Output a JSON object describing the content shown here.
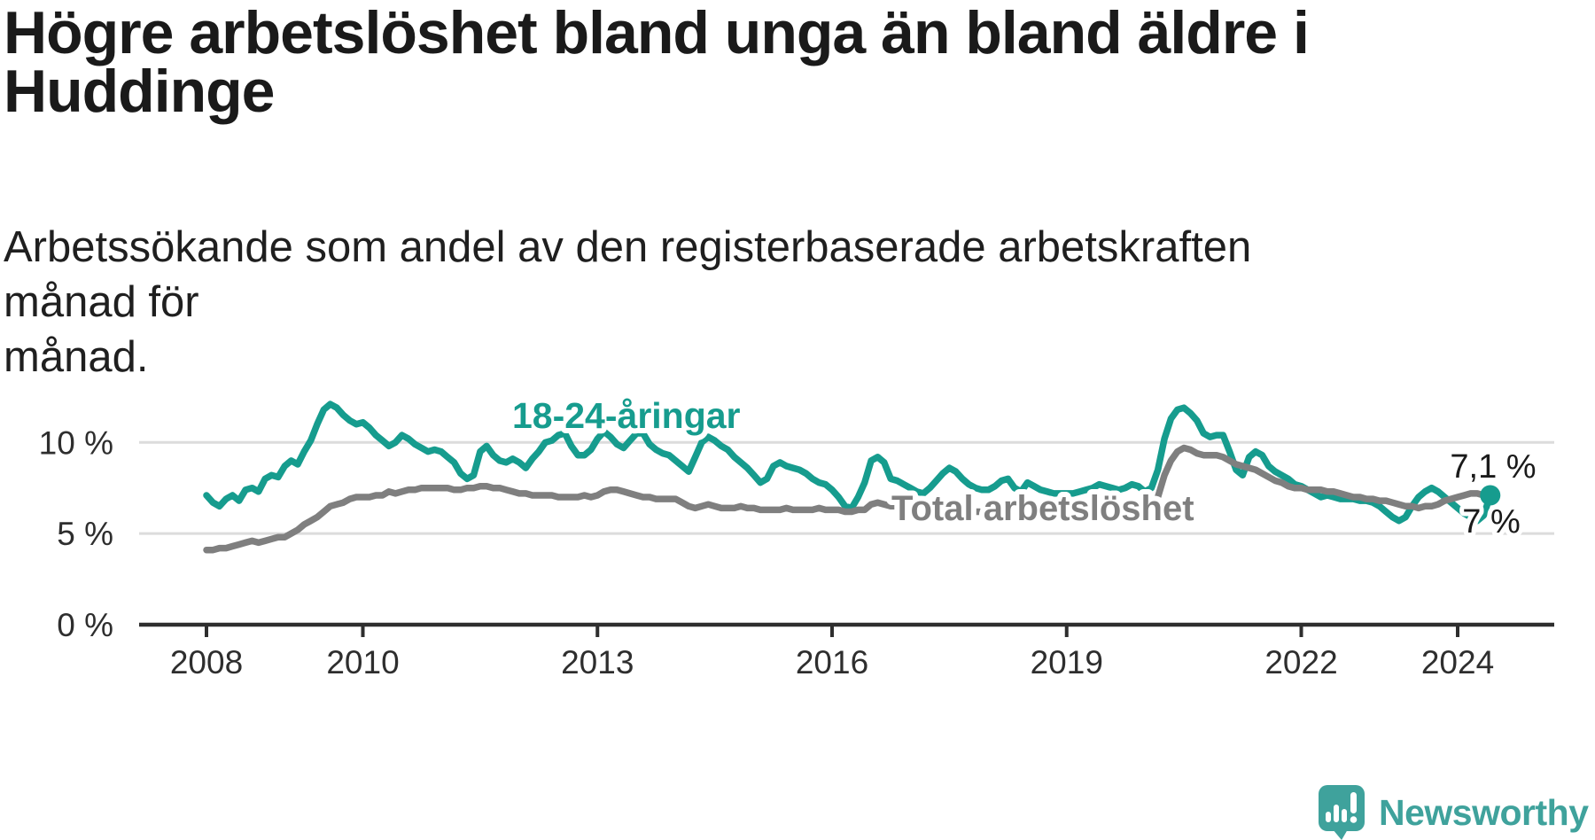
{
  "header": {
    "title_line1": "Högre arbetslöshet bland unga än bland äldre i",
    "title_line2": "Huddinge",
    "subtitle_line1": "Arbetssökande som andel av den registerbaserade arbetskraften månad för",
    "subtitle_line2": "månad."
  },
  "footer": {
    "brand": "Newsworthy",
    "brand_color": "#3FA29C"
  },
  "colors": {
    "youth_line": "#169C8E",
    "total_line": "#7F7F7F",
    "grid": "#DCDCDC",
    "axis": "#2E2E2E",
    "end_label_text": "#1a1a1a",
    "background": "#FFFFFF"
  },
  "chart_data": {
    "type": "line",
    "title": "Högre arbetslöshet bland unga än bland äldre i Huddinge",
    "subtitle": "Arbetssökande som andel av den registerbaserade arbetskraften månad för månad.",
    "unit": "percent",
    "frequency": "monthly",
    "x_start": {
      "year": 2008,
      "month": 1
    },
    "x_end": {
      "year": 2024,
      "month": 6
    },
    "ylim": [
      0,
      12.6
    ],
    "grid": "horizontal",
    "legend_position": "inline-labels",
    "x_axis": {
      "tick_years": [
        2008,
        2010,
        2013,
        2016,
        2019,
        2022,
        2024
      ]
    },
    "y_axis": {
      "gridline_values": [
        5,
        10
      ],
      "labels": [
        {
          "text": "10 %",
          "value": 10
        },
        {
          "text": "5 %",
          "value": 5
        },
        {
          "text": "0 %",
          "value": 0
        }
      ]
    },
    "series": [
      {
        "name": "18-24-åringar",
        "color": "#169C8E",
        "end_label": "7,1 %",
        "latest_value": 7.1,
        "values": [
          7.1,
          6.7,
          6.5,
          6.9,
          7.1,
          6.8,
          7.4,
          7.5,
          7.3,
          8.0,
          8.2,
          8.1,
          8.7,
          9.0,
          8.8,
          9.5,
          10.1,
          11.0,
          11.8,
          12.1,
          11.9,
          11.5,
          11.2,
          11.0,
          11.1,
          10.8,
          10.4,
          10.1,
          9.8,
          10.0,
          10.4,
          10.2,
          9.9,
          9.7,
          9.5,
          9.6,
          9.5,
          9.2,
          8.9,
          8.3,
          8.0,
          8.2,
          9.5,
          9.8,
          9.3,
          9.0,
          8.9,
          9.1,
          8.9,
          8.6,
          9.1,
          9.5,
          10.0,
          10.1,
          10.4,
          10.5,
          9.8,
          9.3,
          9.3,
          9.6,
          10.2,
          10.6,
          10.3,
          9.9,
          9.7,
          10.1,
          10.5,
          10.5,
          9.9,
          9.6,
          9.4,
          9.3,
          9.0,
          8.7,
          8.4,
          9.2,
          10.0,
          10.3,
          10.1,
          9.8,
          9.6,
          9.2,
          8.9,
          8.6,
          8.2,
          7.8,
          8.0,
          8.7,
          8.9,
          8.7,
          8.6,
          8.5,
          8.3,
          8.0,
          7.8,
          7.7,
          7.4,
          7.0,
          6.5,
          6.4,
          7.0,
          7.8,
          9.0,
          9.2,
          8.9,
          8.0,
          7.9,
          7.7,
          7.5,
          7.3,
          7.2,
          7.5,
          7.9,
          8.3,
          8.6,
          8.4,
          8.0,
          7.7,
          7.5,
          7.4,
          7.4,
          7.6,
          7.9,
          8.0,
          7.5,
          7.3,
          7.8,
          7.6,
          7.4,
          7.3,
          7.2,
          7.2,
          7.2,
          7.2,
          7.3,
          7.4,
          7.5,
          7.7,
          7.6,
          7.5,
          7.4,
          7.5,
          7.7,
          7.6,
          7.3,
          7.5,
          8.5,
          10.2,
          11.3,
          11.8,
          11.9,
          11.6,
          11.2,
          10.5,
          10.3,
          10.4,
          10.4,
          9.5,
          8.5,
          8.2,
          9.2,
          9.5,
          9.3,
          8.7,
          8.4,
          8.2,
          8.0,
          7.7,
          7.6,
          7.4,
          7.2,
          7.0,
          7.1,
          7.0,
          6.9,
          6.9,
          6.9,
          6.8,
          6.8,
          6.7,
          6.5,
          6.2,
          5.9,
          5.7,
          5.9,
          6.5,
          7.0,
          7.3,
          7.5,
          7.3,
          7.0,
          6.7,
          6.4,
          6.1,
          5.9,
          5.7,
          6.0,
          7.1
        ]
      },
      {
        "name": "Total arbetslöshet",
        "color": "#7F7F7F",
        "end_label": "7 %",
        "latest_value": 7.0,
        "values": [
          4.1,
          4.1,
          4.2,
          4.2,
          4.3,
          4.4,
          4.5,
          4.6,
          4.5,
          4.6,
          4.7,
          4.8,
          4.8,
          5.0,
          5.2,
          5.5,
          5.7,
          5.9,
          6.2,
          6.5,
          6.6,
          6.7,
          6.9,
          7.0,
          7.0,
          7.0,
          7.1,
          7.1,
          7.3,
          7.2,
          7.3,
          7.4,
          7.4,
          7.5,
          7.5,
          7.5,
          7.5,
          7.5,
          7.4,
          7.4,
          7.5,
          7.5,
          7.6,
          7.6,
          7.5,
          7.5,
          7.4,
          7.3,
          7.2,
          7.2,
          7.1,
          7.1,
          7.1,
          7.1,
          7.0,
          7.0,
          7.0,
          7.0,
          7.1,
          7.0,
          7.1,
          7.3,
          7.4,
          7.4,
          7.3,
          7.2,
          7.1,
          7.0,
          7.0,
          6.9,
          6.9,
          6.9,
          6.9,
          6.7,
          6.5,
          6.4,
          6.5,
          6.6,
          6.5,
          6.4,
          6.4,
          6.4,
          6.5,
          6.4,
          6.4,
          6.3,
          6.3,
          6.3,
          6.3,
          6.4,
          6.3,
          6.3,
          6.3,
          6.3,
          6.4,
          6.3,
          6.3,
          6.3,
          6.2,
          6.2,
          6.3,
          6.3,
          6.6,
          6.7,
          6.6,
          6.5,
          6.5,
          6.4,
          6.4,
          6.3,
          6.3,
          6.3,
          6.4,
          6.4,
          6.5,
          6.4,
          6.3,
          6.3,
          6.2,
          6.2,
          6.2,
          6.2,
          6.1,
          6.1,
          6.0,
          6.1,
          6.1,
          6.1,
          6.0,
          6.0,
          6.0,
          6.1,
          6.1,
          6.1,
          6.1,
          6.2,
          6.2,
          6.3,
          6.3,
          6.3,
          6.3,
          6.3,
          6.4,
          6.4,
          6.5,
          6.6,
          7.0,
          8.2,
          9.0,
          9.5,
          9.7,
          9.6,
          9.4,
          9.3,
          9.3,
          9.3,
          9.2,
          9.0,
          8.8,
          8.7,
          8.6,
          8.5,
          8.3,
          8.1,
          7.9,
          7.8,
          7.6,
          7.5,
          7.5,
          7.4,
          7.4,
          7.4,
          7.3,
          7.3,
          7.2,
          7.1,
          7.0,
          7.0,
          6.9,
          6.9,
          6.8,
          6.8,
          6.7,
          6.6,
          6.5,
          6.5,
          6.4,
          6.5,
          6.5,
          6.6,
          6.8,
          6.9,
          7.0,
          7.1,
          7.2,
          7.2,
          7.1,
          7.0
        ]
      }
    ],
    "end_dot": {
      "series_index": 0,
      "value": 7.1
    }
  }
}
